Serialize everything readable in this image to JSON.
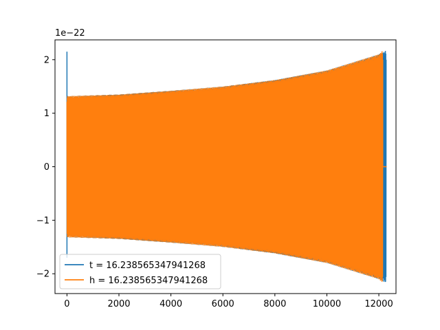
{
  "chart_data": {
    "type": "line",
    "title": "",
    "xlabel": "",
    "ylabel": "",
    "y_offset_label": "1e−22",
    "xlim": [
      -460,
      12660
    ],
    "ylim": [
      -2.37,
      2.37
    ],
    "xticks": [
      0,
      2000,
      4000,
      6000,
      8000,
      10000,
      12000
    ],
    "xtick_labels": [
      "0",
      "2000",
      "4000",
      "6000",
      "8000",
      "10000",
      "12000"
    ],
    "yticks": [
      -2,
      -1,
      0,
      1,
      2
    ],
    "ytick_labels": [
      "−2",
      "−1",
      "0",
      "1",
      "2"
    ],
    "grid": false,
    "legend_position": "lower-left",
    "series": [
      {
        "name": "t = 16.238565347941268",
        "color": "#1f77b4",
        "description_points": {
          "start_spike": {
            "x": 0,
            "y_max": 2.15,
            "y_min": -1.7
          },
          "envelope_x": [
            0,
            2000,
            4000,
            6000,
            8000,
            10000,
            12000,
            12280
          ],
          "envelope_amp": [
            1.32,
            1.35,
            1.42,
            1.5,
            1.62,
            1.8,
            2.1,
            2.17
          ],
          "end_x": 12280
        }
      },
      {
        "name": "h = 16.238565347941268",
        "color": "#ff7f0e",
        "description_points": {
          "envelope_x": [
            0,
            2000,
            4000,
            6000,
            8000,
            10000,
            12000,
            12150
          ],
          "envelope_amp": [
            1.32,
            1.35,
            1.42,
            1.5,
            1.62,
            1.8,
            2.1,
            2.17
          ],
          "end_x": 12150,
          "tail_x": [
            12150,
            12300
          ],
          "tail_y": 0
        }
      }
    ]
  }
}
